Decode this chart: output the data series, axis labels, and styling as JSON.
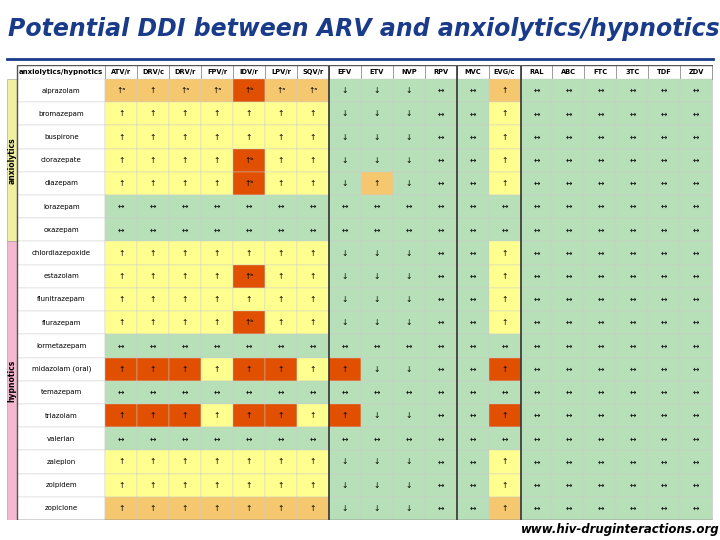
{
  "title": "Potential DDI between ARV and anxiolytics/hypnotics",
  "url": "www.hiv-druginteractions.org",
  "col_headers": [
    "anxiolytics/hypnotics",
    "ATV/r",
    "DRV/c",
    "DRV/r",
    "FPV/r",
    "IDV/r",
    "LPV/r",
    "SQV/r",
    "EFV",
    "ETV",
    "NVP",
    "RPV",
    "MVC",
    "EVG/c",
    "RAL",
    "ABC",
    "FTC",
    "3TC",
    "TDF",
    "ZDV"
  ],
  "group_labels": [
    {
      "label": "anxiolytics",
      "rows": [
        0,
        1,
        2,
        3,
        4,
        5,
        6
      ],
      "color": "#f0f0a0"
    },
    {
      "label": "hypnotics",
      "rows": [
        7,
        8,
        9,
        10,
        11,
        12,
        13,
        14,
        15,
        16,
        17,
        18
      ],
      "color": "#f5b8d0"
    }
  ],
  "rows": [
    {
      "drug": "alprazolam",
      "cells": [
        "↑ᵃ",
        "↑",
        "↑ᵃ",
        "↑ᵃ",
        "↑ᵇ",
        "↑ᵃ",
        "↑ᵃ",
        "↓",
        "↓",
        "↓",
        "↔",
        "↔",
        "↑",
        "↔",
        "↔",
        "↔",
        "↔",
        "↔",
        "↔"
      ]
    },
    {
      "drug": "bromazepam",
      "cells": [
        "↑",
        "↑",
        "↑",
        "↑",
        "↑",
        "↑",
        "↑",
        "↓",
        "↓",
        "↓",
        "↔",
        "↔",
        "↑",
        "↔",
        "↔",
        "↔",
        "↔",
        "↔",
        "↔"
      ]
    },
    {
      "drug": "buspirone",
      "cells": [
        "↑",
        "↑",
        "↑",
        "↑",
        "↑",
        "↑",
        "↑",
        "↓",
        "↓",
        "↓",
        "↔",
        "↔",
        "↑",
        "↔",
        "↔",
        "↔",
        "↔",
        "↔",
        "↔"
      ]
    },
    {
      "drug": "clorazepate",
      "cells": [
        "↑",
        "↑",
        "↑",
        "↑",
        "↑ᵇ",
        "↑",
        "↑",
        "↓",
        "↓",
        "↓",
        "↔",
        "↔",
        "↑",
        "↔",
        "↔",
        "↔",
        "↔",
        "↔",
        "↔"
      ]
    },
    {
      "drug": "diazepam",
      "cells": [
        "↑",
        "↑",
        "↑",
        "↑",
        "↑ᵇ",
        "↑",
        "↑",
        "↓",
        "↑",
        "↓",
        "↔",
        "↔",
        "↑",
        "↔",
        "↔",
        "↔",
        "↔",
        "↔",
        "↔"
      ]
    },
    {
      "drug": "lorazepam",
      "cells": [
        "↔",
        "↔",
        "↔",
        "↔",
        "↔",
        "↔",
        "↔",
        "↔",
        "↔",
        "↔",
        "↔",
        "↔",
        "↔",
        "↔",
        "↔",
        "↔",
        "↔",
        "↔",
        "↔"
      ]
    },
    {
      "drug": "oxazepam",
      "cells": [
        "↔",
        "↔",
        "↔",
        "↔",
        "↔",
        "↔",
        "↔",
        "↔",
        "↔",
        "↔",
        "↔",
        "↔",
        "↔",
        "↔",
        "↔",
        "↔",
        "↔",
        "↔",
        "↔"
      ]
    },
    {
      "drug": "chlordiazepoxide",
      "cells": [
        "↑",
        "↑",
        "↑",
        "↑",
        "↑",
        "↑",
        "↑",
        "↓",
        "↓",
        "↓",
        "↔",
        "↔",
        "↑",
        "↔",
        "↔",
        "↔",
        "↔",
        "↔",
        "↔"
      ]
    },
    {
      "drug": "estazolam",
      "cells": [
        "↑",
        "↑",
        "↑",
        "↑",
        "↑ᵇ",
        "↑",
        "↑",
        "↓",
        "↓",
        "↓",
        "↔",
        "↔",
        "↑",
        "↔",
        "↔",
        "↔",
        "↔",
        "↔",
        "↔"
      ]
    },
    {
      "drug": "flunitrazepam",
      "cells": [
        "↑",
        "↑",
        "↑",
        "↑",
        "↑",
        "↑",
        "↑",
        "↓",
        "↓",
        "↓",
        "↔",
        "↔",
        "↑",
        "↔",
        "↔",
        "↔",
        "↔",
        "↔",
        "↔"
      ]
    },
    {
      "drug": "flurazepam",
      "cells": [
        "↑",
        "↑",
        "↑",
        "↑",
        "↑ᵇ",
        "↑",
        "↑",
        "↓",
        "↓",
        "↓",
        "↔",
        "↔",
        "↑",
        "↔",
        "↔",
        "↔",
        "↔",
        "↔",
        "↔"
      ]
    },
    {
      "drug": "lormetazepam",
      "cells": [
        "↔",
        "↔",
        "↔",
        "↔",
        "↔",
        "↔",
        "↔",
        "↔",
        "↔",
        "↔",
        "↔",
        "↔",
        "↔",
        "↔",
        "↔",
        "↔",
        "↔",
        "↔",
        "↔"
      ]
    },
    {
      "drug": "midazolam (oral)",
      "cells": [
        "↑",
        "↑",
        "↑",
        "↑",
        "↑",
        "↑",
        "↑",
        "↑",
        "↓",
        "↓",
        "↔",
        "↔",
        "↑",
        "↔",
        "↔",
        "↔",
        "↔",
        "↔",
        "↔"
      ]
    },
    {
      "drug": "temazepam",
      "cells": [
        "↔",
        "↔",
        "↔",
        "↔",
        "↔",
        "↔",
        "↔",
        "↔",
        "↔",
        "↔",
        "↔",
        "↔",
        "↔",
        "↔",
        "↔",
        "↔",
        "↔",
        "↔",
        "↔"
      ]
    },
    {
      "drug": "triazolam",
      "cells": [
        "↑",
        "↑",
        "↑",
        "↑",
        "↑",
        "↑",
        "↑",
        "↑",
        "↓",
        "↓",
        "↔",
        "↔",
        "↑",
        "↔",
        "↔",
        "↔",
        "↔",
        "↔",
        "↔"
      ]
    },
    {
      "drug": "valerian",
      "cells": [
        "↔",
        "↔",
        "↔",
        "↔",
        "↔",
        "↔",
        "↔",
        "↔",
        "↔",
        "↔",
        "↔",
        "↔",
        "↔",
        "↔",
        "↔",
        "↔",
        "↔",
        "↔",
        "↔"
      ]
    },
    {
      "drug": "zaleplon",
      "cells": [
        "↑",
        "↑",
        "↑",
        "↑",
        "↑",
        "↑",
        "↑",
        "↓",
        "↓",
        "↓",
        "↔",
        "↔",
        "↑",
        "↔",
        "↔",
        "↔",
        "↔",
        "↔",
        "↔"
      ]
    },
    {
      "drug": "zolpidem",
      "cells": [
        "↑",
        "↑",
        "↑",
        "↑",
        "↑",
        "↑",
        "↑",
        "↓",
        "↓",
        "↓",
        "↔",
        "↔",
        "↑",
        "↔",
        "↔",
        "↔",
        "↔",
        "↔",
        "↔"
      ]
    },
    {
      "drug": "zopiclone",
      "cells": [
        "↑",
        "↑",
        "↑",
        "↑",
        "↑",
        "↑",
        "↑",
        "↓",
        "↓",
        "↓",
        "↔",
        "↔",
        "↑",
        "↔",
        "↔",
        "↔",
        "↔",
        "↔",
        "↔"
      ]
    }
  ],
  "cell_colors": {
    "RED": "#e05000",
    "ORANGE": "#f08000",
    "LIGHTORANGE": "#f5c870",
    "YELLOW": "#ffff90",
    "LIGHTGREEN": "#b8e0b8",
    "WHITE": "#ffffff"
  },
  "color_map": [
    [
      "LIGHTORANGE",
      "LIGHTORANGE",
      "LIGHTORANGE",
      "LIGHTORANGE",
      "RED",
      "LIGHTORANGE",
      "LIGHTORANGE",
      "LIGHTGREEN",
      "LIGHTGREEN",
      "LIGHTGREEN",
      "LIGHTGREEN",
      "LIGHTGREEN",
      "LIGHTORANGE",
      "LIGHTGREEN",
      "LIGHTGREEN",
      "LIGHTGREEN",
      "LIGHTGREEN",
      "LIGHTGREEN",
      "LIGHTGREEN"
    ],
    [
      "YELLOW",
      "YELLOW",
      "YELLOW",
      "YELLOW",
      "YELLOW",
      "YELLOW",
      "YELLOW",
      "LIGHTGREEN",
      "LIGHTGREEN",
      "LIGHTGREEN",
      "LIGHTGREEN",
      "LIGHTGREEN",
      "YELLOW",
      "LIGHTGREEN",
      "LIGHTGREEN",
      "LIGHTGREEN",
      "LIGHTGREEN",
      "LIGHTGREEN",
      "LIGHTGREEN"
    ],
    [
      "YELLOW",
      "YELLOW",
      "YELLOW",
      "YELLOW",
      "YELLOW",
      "YELLOW",
      "YELLOW",
      "LIGHTGREEN",
      "LIGHTGREEN",
      "LIGHTGREEN",
      "LIGHTGREEN",
      "LIGHTGREEN",
      "YELLOW",
      "LIGHTGREEN",
      "LIGHTGREEN",
      "LIGHTGREEN",
      "LIGHTGREEN",
      "LIGHTGREEN",
      "LIGHTGREEN"
    ],
    [
      "YELLOW",
      "YELLOW",
      "YELLOW",
      "YELLOW",
      "RED",
      "YELLOW",
      "YELLOW",
      "LIGHTGREEN",
      "LIGHTGREEN",
      "LIGHTGREEN",
      "LIGHTGREEN",
      "LIGHTGREEN",
      "YELLOW",
      "LIGHTGREEN",
      "LIGHTGREEN",
      "LIGHTGREEN",
      "LIGHTGREEN",
      "LIGHTGREEN",
      "LIGHTGREEN"
    ],
    [
      "YELLOW",
      "YELLOW",
      "YELLOW",
      "YELLOW",
      "RED",
      "YELLOW",
      "YELLOW",
      "LIGHTGREEN",
      "LIGHTORANGE",
      "LIGHTGREEN",
      "LIGHTGREEN",
      "LIGHTGREEN",
      "YELLOW",
      "LIGHTGREEN",
      "LIGHTGREEN",
      "LIGHTGREEN",
      "LIGHTGREEN",
      "LIGHTGREEN",
      "LIGHTGREEN"
    ],
    [
      "LIGHTGREEN",
      "LIGHTGREEN",
      "LIGHTGREEN",
      "LIGHTGREEN",
      "LIGHTGREEN",
      "LIGHTGREEN",
      "LIGHTGREEN",
      "LIGHTGREEN",
      "LIGHTGREEN",
      "LIGHTGREEN",
      "LIGHTGREEN",
      "LIGHTGREEN",
      "LIGHTGREEN",
      "LIGHTGREEN",
      "LIGHTGREEN",
      "LIGHTGREEN",
      "LIGHTGREEN",
      "LIGHTGREEN",
      "LIGHTGREEN"
    ],
    [
      "LIGHTGREEN",
      "LIGHTGREEN",
      "LIGHTGREEN",
      "LIGHTGREEN",
      "LIGHTGREEN",
      "LIGHTGREEN",
      "LIGHTGREEN",
      "LIGHTGREEN",
      "LIGHTGREEN",
      "LIGHTGREEN",
      "LIGHTGREEN",
      "LIGHTGREEN",
      "LIGHTGREEN",
      "LIGHTGREEN",
      "LIGHTGREEN",
      "LIGHTGREEN",
      "LIGHTGREEN",
      "LIGHTGREEN",
      "LIGHTGREEN"
    ],
    [
      "YELLOW",
      "YELLOW",
      "YELLOW",
      "YELLOW",
      "YELLOW",
      "YELLOW",
      "YELLOW",
      "LIGHTGREEN",
      "LIGHTGREEN",
      "LIGHTGREEN",
      "LIGHTGREEN",
      "LIGHTGREEN",
      "YELLOW",
      "LIGHTGREEN",
      "LIGHTGREEN",
      "LIGHTGREEN",
      "LIGHTGREEN",
      "LIGHTGREEN",
      "LIGHTGREEN"
    ],
    [
      "YELLOW",
      "YELLOW",
      "YELLOW",
      "YELLOW",
      "RED",
      "YELLOW",
      "YELLOW",
      "LIGHTGREEN",
      "LIGHTGREEN",
      "LIGHTGREEN",
      "LIGHTGREEN",
      "LIGHTGREEN",
      "YELLOW",
      "LIGHTGREEN",
      "LIGHTGREEN",
      "LIGHTGREEN",
      "LIGHTGREEN",
      "LIGHTGREEN",
      "LIGHTGREEN"
    ],
    [
      "YELLOW",
      "YELLOW",
      "YELLOW",
      "YELLOW",
      "YELLOW",
      "YELLOW",
      "YELLOW",
      "LIGHTGREEN",
      "LIGHTGREEN",
      "LIGHTGREEN",
      "LIGHTGREEN",
      "LIGHTGREEN",
      "YELLOW",
      "LIGHTGREEN",
      "LIGHTGREEN",
      "LIGHTGREEN",
      "LIGHTGREEN",
      "LIGHTGREEN",
      "LIGHTGREEN"
    ],
    [
      "YELLOW",
      "YELLOW",
      "YELLOW",
      "YELLOW",
      "RED",
      "YELLOW",
      "YELLOW",
      "LIGHTGREEN",
      "LIGHTGREEN",
      "LIGHTGREEN",
      "LIGHTGREEN",
      "LIGHTGREEN",
      "YELLOW",
      "LIGHTGREEN",
      "LIGHTGREEN",
      "LIGHTGREEN",
      "LIGHTGREEN",
      "LIGHTGREEN",
      "LIGHTGREEN"
    ],
    [
      "LIGHTGREEN",
      "LIGHTGREEN",
      "LIGHTGREEN",
      "LIGHTGREEN",
      "LIGHTGREEN",
      "LIGHTGREEN",
      "LIGHTGREEN",
      "LIGHTGREEN",
      "LIGHTGREEN",
      "LIGHTGREEN",
      "LIGHTGREEN",
      "LIGHTGREEN",
      "LIGHTGREEN",
      "LIGHTGREEN",
      "LIGHTGREEN",
      "LIGHTGREEN",
      "LIGHTGREEN",
      "LIGHTGREEN",
      "LIGHTGREEN"
    ],
    [
      "RED",
      "RED",
      "RED",
      "YELLOW",
      "RED",
      "RED",
      "YELLOW",
      "RED",
      "LIGHTGREEN",
      "LIGHTGREEN",
      "LIGHTGREEN",
      "LIGHTGREEN",
      "RED",
      "LIGHTGREEN",
      "LIGHTGREEN",
      "LIGHTGREEN",
      "LIGHTGREEN",
      "LIGHTGREEN",
      "LIGHTGREEN"
    ],
    [
      "LIGHTGREEN",
      "LIGHTGREEN",
      "LIGHTGREEN",
      "LIGHTGREEN",
      "LIGHTGREEN",
      "LIGHTGREEN",
      "LIGHTGREEN",
      "LIGHTGREEN",
      "LIGHTGREEN",
      "LIGHTGREEN",
      "LIGHTGREEN",
      "LIGHTGREEN",
      "LIGHTGREEN",
      "LIGHTGREEN",
      "LIGHTGREEN",
      "LIGHTGREEN",
      "LIGHTGREEN",
      "LIGHTGREEN",
      "LIGHTGREEN"
    ],
    [
      "RED",
      "RED",
      "RED",
      "YELLOW",
      "RED",
      "RED",
      "YELLOW",
      "RED",
      "LIGHTGREEN",
      "LIGHTGREEN",
      "LIGHTGREEN",
      "LIGHTGREEN",
      "RED",
      "LIGHTGREEN",
      "LIGHTGREEN",
      "LIGHTGREEN",
      "LIGHTGREEN",
      "LIGHTGREEN",
      "LIGHTGREEN"
    ],
    [
      "LIGHTGREEN",
      "LIGHTGREEN",
      "LIGHTGREEN",
      "LIGHTGREEN",
      "LIGHTGREEN",
      "LIGHTGREEN",
      "LIGHTGREEN",
      "LIGHTGREEN",
      "LIGHTGREEN",
      "LIGHTGREEN",
      "LIGHTGREEN",
      "LIGHTGREEN",
      "LIGHTGREEN",
      "LIGHTGREEN",
      "LIGHTGREEN",
      "LIGHTGREEN",
      "LIGHTGREEN",
      "LIGHTGREEN",
      "LIGHTGREEN"
    ],
    [
      "YELLOW",
      "YELLOW",
      "YELLOW",
      "YELLOW",
      "YELLOW",
      "YELLOW",
      "YELLOW",
      "LIGHTGREEN",
      "LIGHTGREEN",
      "LIGHTGREEN",
      "LIGHTGREEN",
      "LIGHTGREEN",
      "YELLOW",
      "LIGHTGREEN",
      "LIGHTGREEN",
      "LIGHTGREEN",
      "LIGHTGREEN",
      "LIGHTGREEN",
      "LIGHTGREEN"
    ],
    [
      "YELLOW",
      "YELLOW",
      "YELLOW",
      "YELLOW",
      "YELLOW",
      "YELLOW",
      "YELLOW",
      "LIGHTGREEN",
      "LIGHTGREEN",
      "LIGHTGREEN",
      "LIGHTGREEN",
      "LIGHTGREEN",
      "YELLOW",
      "LIGHTGREEN",
      "LIGHTGREEN",
      "LIGHTGREEN",
      "LIGHTGREEN",
      "LIGHTGREEN",
      "LIGHTGREEN"
    ],
    [
      "LIGHTORANGE",
      "LIGHTORANGE",
      "LIGHTORANGE",
      "LIGHTORANGE",
      "LIGHTORANGE",
      "LIGHTORANGE",
      "LIGHTORANGE",
      "LIGHTGREEN",
      "LIGHTGREEN",
      "LIGHTGREEN",
      "LIGHTGREEN",
      "LIGHTGREEN",
      "LIGHTORANGE",
      "LIGHTGREEN",
      "LIGHTGREEN",
      "LIGHTGREEN",
      "LIGHTGREEN",
      "LIGHTGREEN",
      "LIGHTGREEN"
    ]
  ],
  "divider_after_cols": [
    7,
    11,
    13
  ],
  "title_color": "#1a3a8a",
  "title_underline_color": "#1a3a8a",
  "font_size_title": 17,
  "bg_color": "#ffffff"
}
